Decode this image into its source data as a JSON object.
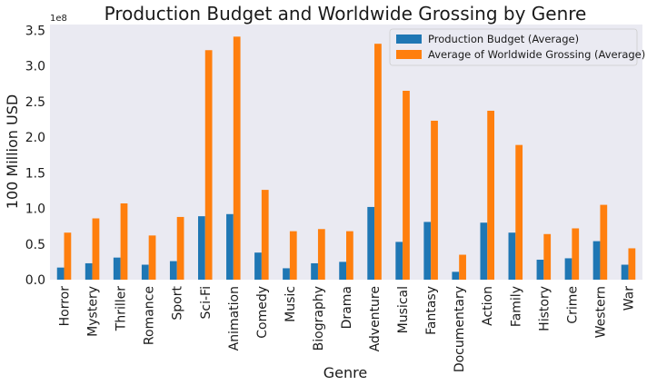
{
  "chart_data": {
    "type": "bar",
    "title": "Production Budget and Worldwide Grossing by Genre",
    "xlabel": "Genre",
    "ylabel": "100 Million USD",
    "y_scale_label": "1e8",
    "ylim": [
      0,
      3.58
    ],
    "yticks": [
      "0.0",
      "0.5",
      "1.0",
      "1.5",
      "2.0",
      "2.5",
      "3.0",
      "3.5"
    ],
    "grid": false,
    "legend_position": "top-right",
    "categories": [
      "Horror",
      "Mystery",
      "Thriller",
      "Romance",
      "Sport",
      "Sci-Fi",
      "Animation",
      "Comedy",
      "Music",
      "Biography",
      "Drama",
      "Adventure",
      "Musical",
      "Fantasy",
      "Documentary",
      "Action",
      "Family",
      "History",
      "Crime",
      "Western",
      "War"
    ],
    "series": [
      {
        "name": "Production Budget (Average)",
        "color": "#1f77b4",
        "values": [
          0.17,
          0.23,
          0.31,
          0.21,
          0.26,
          0.89,
          0.92,
          0.38,
          0.16,
          0.23,
          0.25,
          1.02,
          0.53,
          0.81,
          0.11,
          0.8,
          0.66,
          0.28,
          0.3,
          0.54,
          0.21
        ]
      },
      {
        "name": "Average of Worldwide Grossing (Average)",
        "color": "#ff7f0e",
        "values": [
          0.66,
          0.86,
          1.07,
          0.62,
          0.88,
          3.22,
          3.41,
          1.26,
          0.68,
          0.71,
          0.68,
          3.31,
          2.65,
          2.23,
          0.35,
          2.37,
          1.89,
          0.64,
          0.72,
          1.05,
          0.44
        ]
      }
    ]
  }
}
